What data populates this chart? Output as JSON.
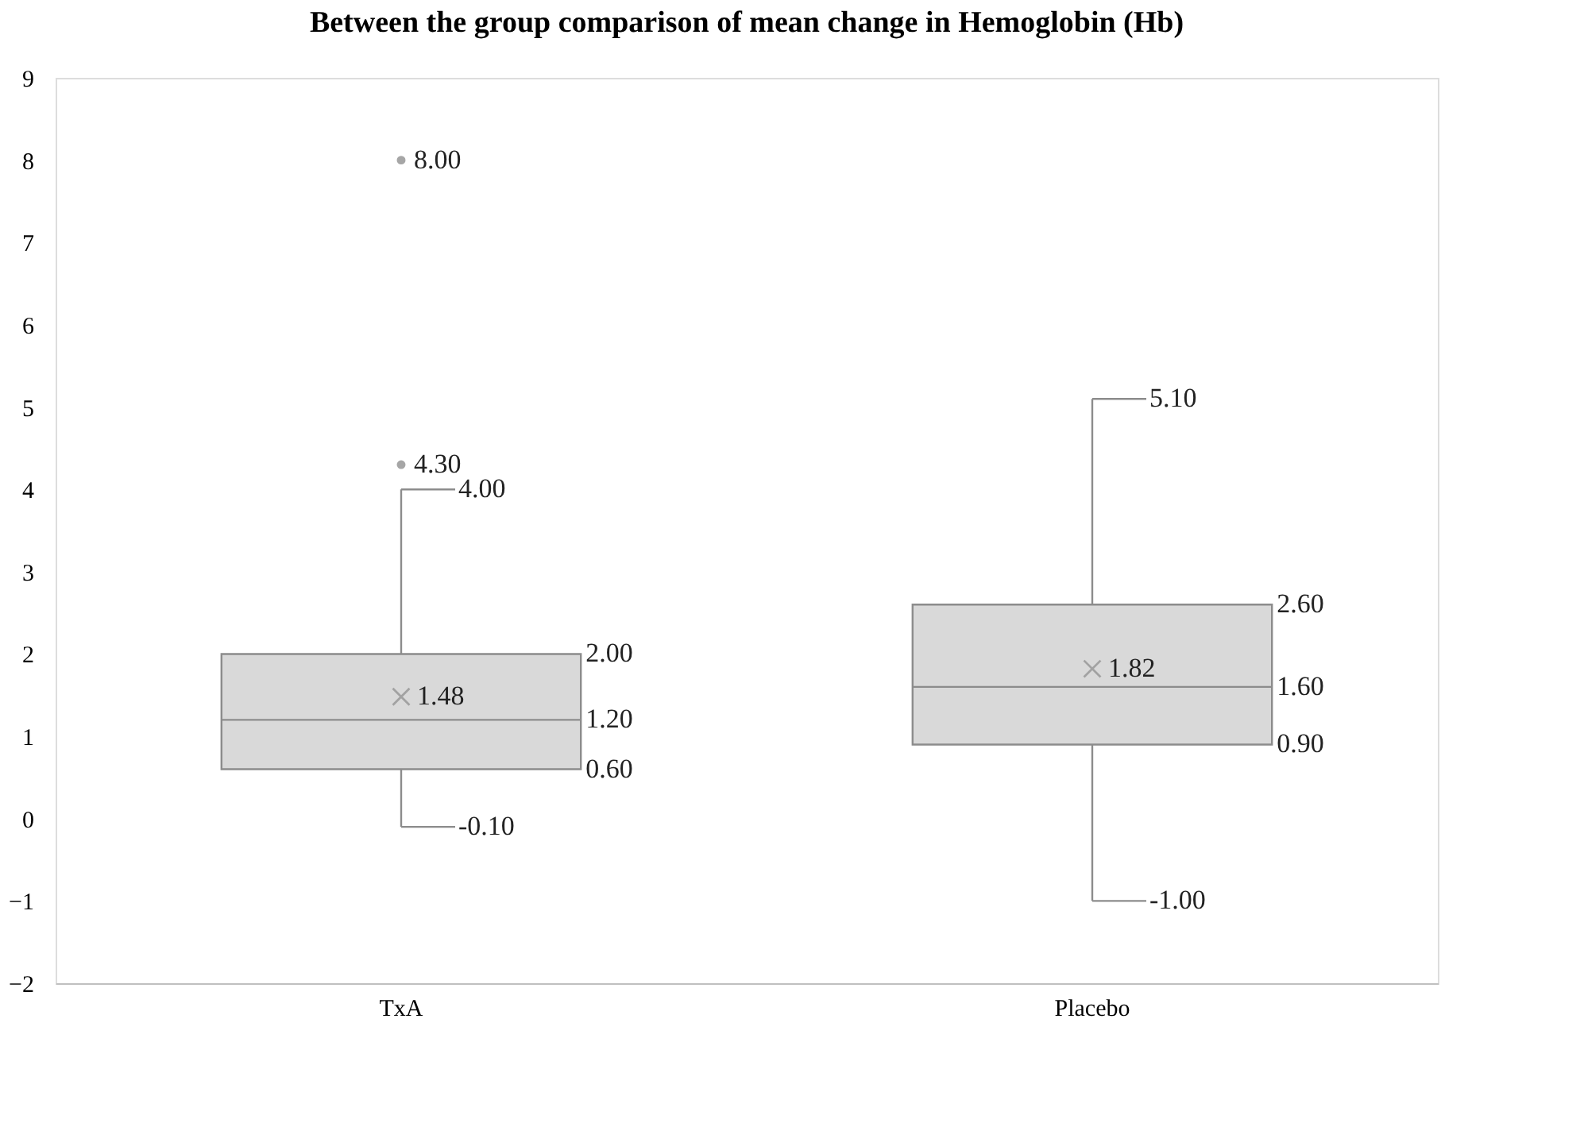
{
  "chart_data": {
    "type": "box",
    "title": "Between the group comparison of mean change in Hemoglobin (Hb)",
    "categories": [
      "TxA",
      "Placebo"
    ],
    "series": [
      {
        "color": "#d9d9d9",
        "boxes": [
          {
            "low": -0.1,
            "q1": 0.6,
            "median": 1.2,
            "q3": 2.0,
            "high": 4.0,
            "mean": 1.48,
            "outliers": [
              4.3,
              8.0
            ]
          },
          {
            "low": -1.0,
            "q1": 0.9,
            "median": 1.6,
            "q3": 2.6,
            "high": 5.1,
            "mean": 1.82
          }
        ]
      }
    ],
    "ylim": [
      -2,
      9
    ],
    "yticks": [
      -2,
      -1,
      0,
      1,
      2,
      3,
      4,
      5,
      6,
      7,
      8,
      9
    ],
    "grid": false,
    "annotations": [
      "-0.10",
      "0.60",
      "1.20",
      "2.00",
      "4.00",
      "1.48",
      "4.30",
      "8.00",
      "-1.00",
      "0.90",
      "1.60",
      "2.60",
      "5.10",
      "1.82"
    ]
  }
}
